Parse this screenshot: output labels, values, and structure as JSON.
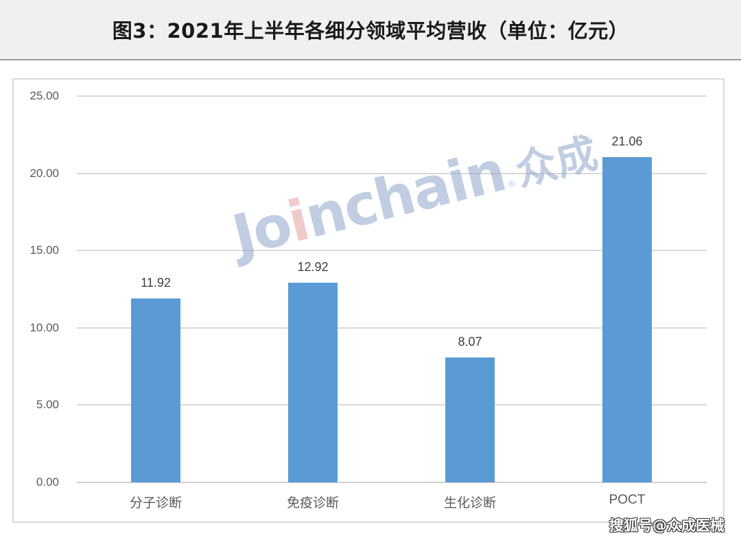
{
  "header": {
    "title": "图3：2021年上半年各细分领域平均营收（单位：亿元）"
  },
  "chart_data": {
    "type": "bar",
    "title": "图3：2021年上半年各细分领域平均营收（单位：亿元）",
    "categories": [
      "分子诊断",
      "免疫诊断",
      "生化诊断",
      "POCT"
    ],
    "values": [
      11.92,
      12.92,
      8.07,
      21.06
    ],
    "value_labels": [
      "11.92",
      "12.92",
      "8.07",
      "21.06"
    ],
    "xlabel": "",
    "ylabel": "",
    "ylim": [
      0,
      25
    ],
    "yticks": [
      "25.00",
      "20.00",
      "15.00",
      "10.00",
      "5.00",
      "0.00"
    ],
    "grid": true,
    "legend": "none",
    "bar_color": "#5b9bd5",
    "unit": "亿元"
  },
  "watermark": {
    "latin_pre": "Jo",
    "latin_dot_i": "i",
    "latin_post": "nchain",
    "registered": "®",
    "chinese": "众成"
  },
  "source_tag": "搜狐号@众成医械"
}
